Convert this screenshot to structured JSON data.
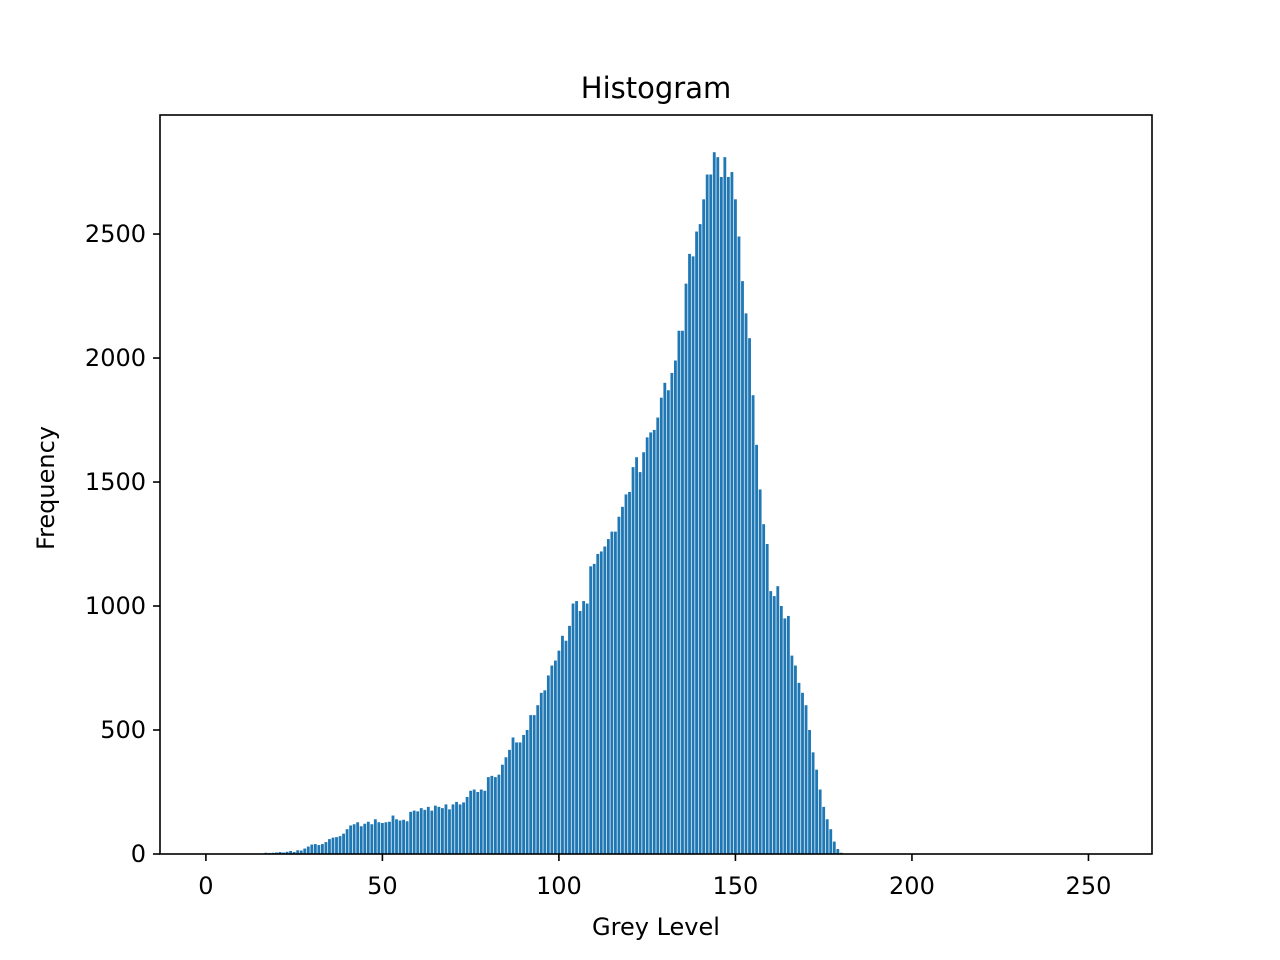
{
  "chart_data": {
    "type": "bar",
    "title": "Histogram",
    "xlabel": "Grey Level",
    "ylabel": "Frequency",
    "xlim": [
      -13,
      268
    ],
    "ylim": [
      0,
      2980
    ],
    "xticks": [
      0,
      50,
      100,
      150,
      200,
      250
    ],
    "yticks": [
      0,
      500,
      1000,
      1500,
      2000,
      2500
    ],
    "grid": false,
    "legend": "none",
    "bar_color": "#1f77b4",
    "series": [
      {
        "x_start": 0,
        "values": [
          0,
          0,
          0,
          0,
          0,
          0,
          0,
          0,
          0,
          0,
          0,
          0,
          0,
          0,
          0,
          0,
          0,
          5,
          4,
          5,
          6,
          8,
          6,
          9,
          12,
          8,
          15,
          14,
          22,
          30,
          38,
          40,
          36,
          40,
          48,
          60,
          66,
          68,
          72,
          82,
          100,
          115,
          120,
          128,
          112,
          122,
          130,
          120,
          140,
          128,
          125,
          128,
          130,
          155,
          140,
          135,
          138,
          132,
          170,
          175,
          172,
          185,
          178,
          190,
          175,
          195,
          190,
          185,
          200,
          180,
          200,
          210,
          200,
          208,
          230,
          255,
          260,
          250,
          260,
          255,
          310,
          315,
          310,
          320,
          360,
          390,
          420,
          470,
          450,
          450,
          480,
          500,
          560,
          560,
          600,
          650,
          660,
          720,
          760,
          780,
          820,
          880,
          860,
          920,
          1010,
          1020,
          980,
          1020,
          1010,
          1160,
          1170,
          1210,
          1220,
          1240,
          1270,
          1300,
          1300,
          1360,
          1400,
          1450,
          1460,
          1560,
          1600,
          1540,
          1620,
          1680,
          1700,
          1710,
          1760,
          1840,
          1900,
          1870,
          1940,
          1990,
          2110,
          2110,
          2300,
          2420,
          2410,
          2510,
          2540,
          2640,
          2740,
          2740,
          2830,
          2810,
          2730,
          2810,
          2730,
          2750,
          2640,
          2490,
          2310,
          2180,
          2080,
          1850,
          1650,
          1470,
          1330,
          1250,
          1060,
          1040,
          1080,
          1000,
          950,
          960,
          800,
          760,
          690,
          650,
          600,
          500,
          410,
          340,
          260,
          190,
          140,
          100,
          50,
          20,
          5,
          0,
          0,
          0,
          0,
          0,
          0,
          0,
          0,
          0,
          0,
          0,
          0,
          0,
          0,
          0,
          0,
          0,
          0,
          0,
          0,
          0,
          0,
          0,
          0,
          0,
          0,
          0,
          0,
          0,
          0,
          0,
          0,
          0,
          0,
          0,
          0,
          0,
          0,
          0,
          0,
          0,
          0,
          0,
          0,
          0,
          0,
          0,
          0,
          0,
          0,
          0,
          0,
          0,
          0,
          0,
          0,
          0,
          0,
          0,
          0,
          0,
          0,
          0,
          0,
          0,
          0,
          0,
          0,
          0,
          0,
          0,
          0,
          0,
          0,
          0,
          0,
          0,
          0,
          0,
          0,
          0,
          0,
          0,
          0,
          0,
          0,
          0,
          0,
          0
        ]
      }
    ]
  }
}
